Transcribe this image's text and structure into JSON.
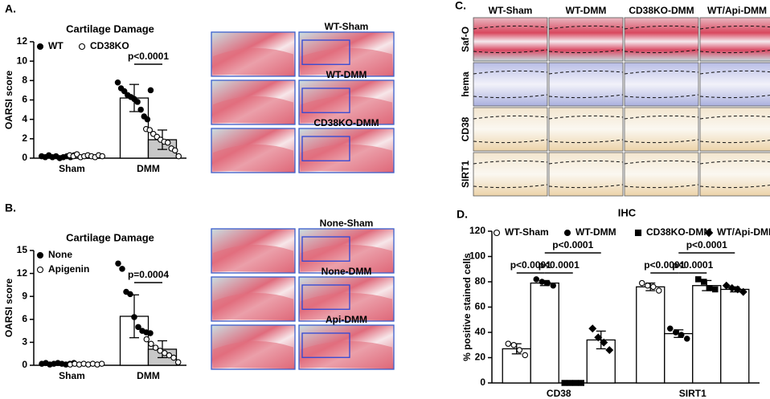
{
  "chart_data": [
    {
      "type": "bar",
      "panel_label": "A.",
      "title": "Cartilage Damage",
      "ylabel": "OARSI score",
      "categories": [
        "Sham",
        "DMM"
      ],
      "ylim": [
        0,
        12
      ],
      "yticks": [
        0,
        2,
        4,
        6,
        8,
        10,
        12
      ],
      "legend": "top-left",
      "legend_layout": "row",
      "series": [
        {
          "name": "WT",
          "color": "#ffffff",
          "marker": "filled-circle",
          "values": [
            0.15,
            6.2
          ],
          "errors": [
            0.1,
            1.4
          ],
          "points": [
            [
              0.2,
              0.1,
              0.3,
              0.1,
              0.2,
              0.0,
              0.1,
              0.2,
              0.1,
              0.3
            ],
            [
              7.8,
              7.2,
              6.9,
              6.5,
              6.3,
              6.1,
              5.8,
              5.0,
              4.3,
              4.0,
              7.0
            ]
          ]
        },
        {
          "name": "CD38KO",
          "color": "#c8c8c8",
          "marker": "open-circle",
          "values": [
            0.2,
            1.9
          ],
          "errors": [
            0.1,
            1.0
          ],
          "points": [
            [
              0.3,
              0.2,
              0.4,
              0.1,
              0.2,
              0.3,
              0.2,
              0.1,
              0.3,
              0.2
            ],
            [
              3.0,
              2.9,
              2.5,
              2.2,
              1.9,
              1.7,
              1.6,
              1.0,
              0.8,
              0.2
            ]
          ]
        }
      ],
      "annotations": [
        "p<0.0001"
      ]
    },
    {
      "type": "bar",
      "panel_label": "B.",
      "title": "Cartilage  Damage",
      "ylabel": "OARSI score",
      "categories": [
        "Sham",
        "DMM"
      ],
      "ylim": [
        0,
        15
      ],
      "yticks": [
        0,
        3,
        6,
        9,
        12,
        15
      ],
      "legend": "top-left",
      "legend_layout": "column",
      "series": [
        {
          "name": "None",
          "color": "#ffffff",
          "marker": "filled-circle",
          "values": [
            0.2,
            6.4
          ],
          "errors": [
            0.1,
            2.8
          ],
          "points": [
            [
              0.2,
              0.3,
              0.1,
              0.2,
              0.3,
              0.2,
              0.1,
              0.2,
              0.3
            ],
            [
              13.3,
              12.6,
              9.6,
              9.3,
              6.3,
              5.0,
              4.5,
              4.3,
              4.2
            ]
          ]
        },
        {
          "name": "Apigenin",
          "color": "#c8c8c8",
          "marker": "open-circle",
          "values": [
            0.15,
            2.1
          ],
          "errors": [
            0.1,
            1.1
          ],
          "points": [
            [
              0.1,
              0.2,
              0.1,
              0.2,
              0.1,
              0.2,
              0.1,
              0.2
            ],
            [
              3.4,
              2.8,
              2.3,
              1.9,
              1.6,
              1.3,
              1.0,
              0.4
            ]
          ]
        }
      ],
      "annotations": [
        "p=0.0004"
      ]
    },
    {
      "type": "bar",
      "panel_label": "D.",
      "title": "IHC",
      "ylabel": "% positive stained cells",
      "categories": [
        "CD38",
        "SIRT1"
      ],
      "ylim": [
        0,
        120
      ],
      "yticks": [
        0,
        20,
        40,
        60,
        80,
        100,
        120
      ],
      "legend": "top",
      "legend_layout": "row",
      "series": [
        {
          "name": "WT-Sham",
          "color": "#ffffff",
          "marker": "open-circle",
          "values": [
            27,
            76
          ],
          "errors": [
            4,
            3
          ],
          "points": [
            [
              31,
              30,
              26,
              22
            ],
            [
              79,
              77,
              76,
              73
            ]
          ]
        },
        {
          "name": "WT-DMM",
          "color": "#ffffff",
          "marker": "filled-circle",
          "values": [
            79,
            39
          ],
          "errors": [
            2,
            3
          ],
          "points": [
            [
              82,
              80,
              79,
              77
            ],
            [
              43,
              40,
              38,
              35
            ]
          ]
        },
        {
          "name": "CD38KO-DMM",
          "color": "#ffffff",
          "marker": "square",
          "values": [
            0,
            77
          ],
          "errors": [
            0,
            4
          ],
          "points": [
            [
              0,
              0,
              0,
              0
            ],
            [
              82,
              80,
              75,
              74
            ]
          ]
        },
        {
          "name": "WT/Api-DMM",
          "color": "#ffffff",
          "marker": "diamond",
          "values": [
            34,
            74
          ],
          "errors": [
            7,
            2
          ],
          "points": [
            [
              43,
              36,
              32,
              26
            ],
            [
              77,
              75,
              74,
              72
            ]
          ]
        }
      ],
      "annotations": [
        "p<0.0001",
        "p<0.0001",
        "p<0.0001",
        "p<0.0001",
        "p<0.0001",
        "p<0.0001"
      ]
    }
  ],
  "histology": {
    "A": {
      "labels": [
        "WT-Sham",
        "WT-DMM",
        "CD38KO-DMM"
      ]
    },
    "B": {
      "labels": [
        "None-Sham",
        "None-DMM",
        "Api-DMM"
      ]
    },
    "C": {
      "panel_label": "C.",
      "columns": [
        "WT-Sham",
        "WT-DMM",
        "CD38KO-DMM",
        "WT/Api-DMM"
      ],
      "rows": [
        "Saf-O",
        "hema",
        "CD38",
        "SIRT1"
      ]
    }
  }
}
